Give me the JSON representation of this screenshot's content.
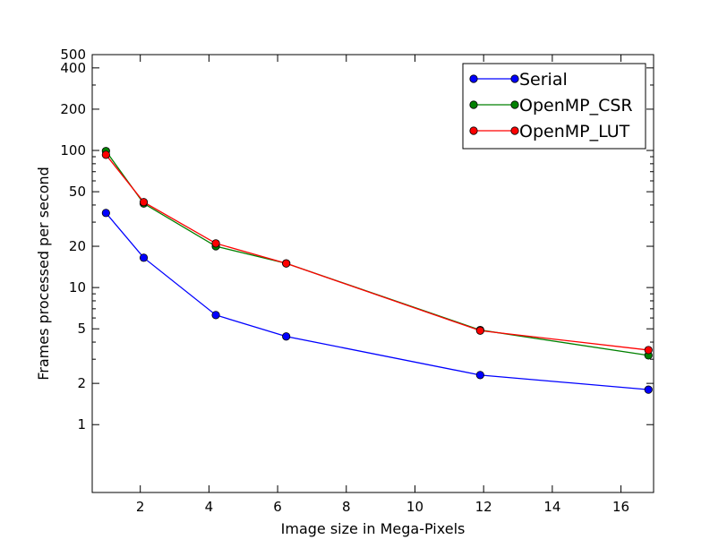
{
  "chart_data": {
    "type": "line",
    "title": "",
    "xlabel": "Image size in Mega-Pixels",
    "ylabel": "Frames processed per second",
    "yscale": "log",
    "xlim": [
      0.6,
      16.95
    ],
    "ylim": [
      0.32,
      500
    ],
    "xticks": [
      2,
      4,
      6,
      8,
      10,
      12,
      14,
      16
    ],
    "yticks": [
      1,
      2,
      5,
      10,
      20,
      50,
      100,
      200,
      400,
      500
    ],
    "grid": false,
    "legend_position": "top-right",
    "x": [
      1.0,
      2.1,
      4.2,
      6.25,
      11.9,
      16.8
    ],
    "series": [
      {
        "name": "Serial",
        "color": "#0000ff",
        "values": [
          35,
          16.5,
          6.3,
          4.4,
          2.3,
          1.8
        ]
      },
      {
        "name": "OpenMP_CSR",
        "color": "#008000",
        "values": [
          99,
          41,
          20,
          15,
          4.9,
          3.2
        ]
      },
      {
        "name": "OpenMP_LUT",
        "color": "#ff0000",
        "values": [
          93,
          42,
          21,
          15,
          4.85,
          3.5
        ]
      }
    ]
  }
}
